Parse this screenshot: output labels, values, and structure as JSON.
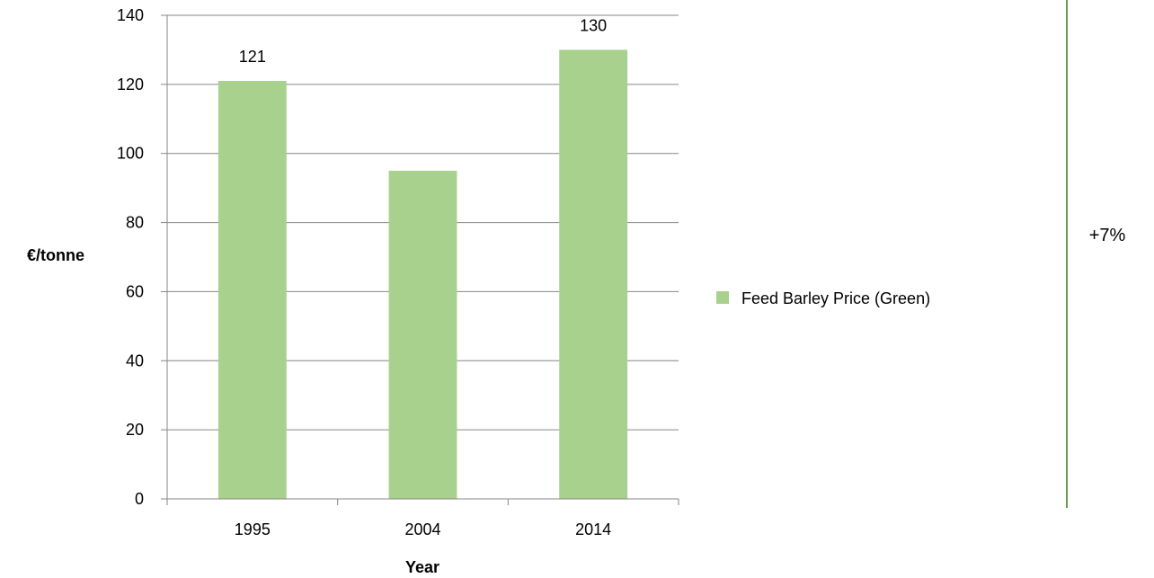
{
  "chart_data": {
    "type": "bar",
    "categories": [
      "1995",
      "2004",
      "2014"
    ],
    "series": [
      {
        "name": "Feed Barley Price (Green)",
        "values": [
          121,
          95,
          130
        ],
        "color": "#a9d18e"
      }
    ],
    "data_labels": [
      "121",
      "",
      "130"
    ],
    "xlabel": "Year",
    "ylabel": "€/tonne",
    "ylim": [
      0,
      140
    ],
    "y_ticks": [
      0,
      20,
      40,
      60,
      80,
      100,
      120,
      140
    ],
    "grid": true,
    "legend_position": "right",
    "annotation": "+7%",
    "annotation_line_color": "#38761d"
  }
}
